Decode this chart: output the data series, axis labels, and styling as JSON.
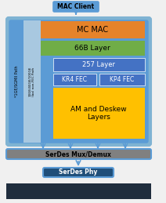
{
  "bg_main": "#5b9bd5",
  "bg_outer": "#7fb3d3",
  "mc_mac_color": "#e6832a",
  "layer_66b_color": "#70ad47",
  "layer_257_color": "#4472c4",
  "fec_color": "#4472c4",
  "am_deskew_color": "#ffc000",
  "side_left_color": "#5b9bd5",
  "side_inner_color": "#a8c8e0",
  "serdes_mux_bg": "#808080",
  "serdes_phy_bg": "#1f4e79",
  "bottom_bar_color": "#1f2d3d",
  "mac_client_bg": "#5b9bd5",
  "text_dark": "#000000",
  "text_white": "#ffffff",
  "text_mac_client": "#000000",
  "labels": {
    "mac_client": "MAC Client",
    "mc_mac": "MC MAC",
    "layer_66b": "66B Layer",
    "layer_257": "257 Layer",
    "kr4_fec": "KR4 FEC",
    "kp4_fec": "KP4 FEC",
    "am_deskew": "AM and Deskew\nLayers",
    "side_left": "*1GE/SGMII Path",
    "side_inner": "10GE/40GE/100GE\n(ba) non-FEC Path",
    "serdes_mux": "SerDes Mux/Demux",
    "serdes_phy": "SerDes Phy"
  },
  "fig_w": 2.12,
  "fig_h": 2.59,
  "dpi": 100
}
